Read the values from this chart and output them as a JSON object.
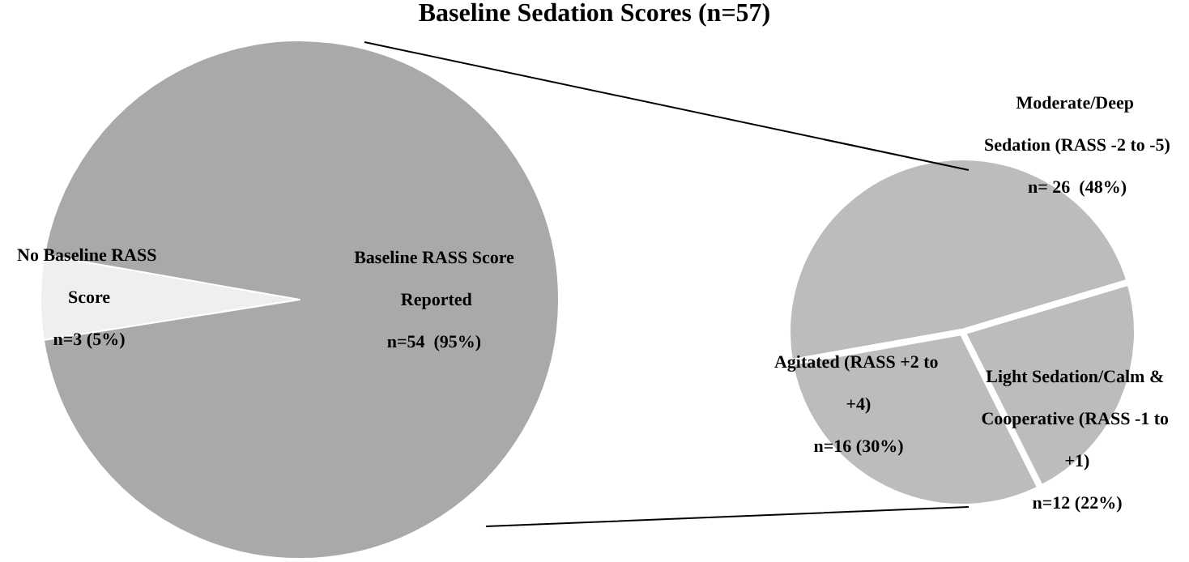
{
  "chart_data": [
    {
      "type": "pie",
      "title": "Baseline Sedation Scores (n=57)",
      "categories": [
        "No Baseline RASS Score",
        "Baseline RASS Score Reported"
      ],
      "values": [
        3,
        54
      ],
      "value_labels": [
        "n=3 (5%)",
        "n=54  (95%)"
      ],
      "colors": [
        "#efefef",
        "#a9a9a9"
      ]
    },
    {
      "type": "pie",
      "categories": [
        "Moderate/Deep Sedation (RASS -2 to -5)",
        "Light Sedation/Calm & Cooperative (RASS -1 to +1)",
        "Agitated (RASS +2 to +4)"
      ],
      "values": [
        26,
        12,
        16
      ],
      "value_labels": [
        "n= 26  (48%)",
        "n=12 (22%)",
        "n=16 (30%)"
      ],
      "colors": [
        "#bcbcbc",
        "#bcbcbc",
        "#bcbcbc"
      ]
    }
  ]
}
